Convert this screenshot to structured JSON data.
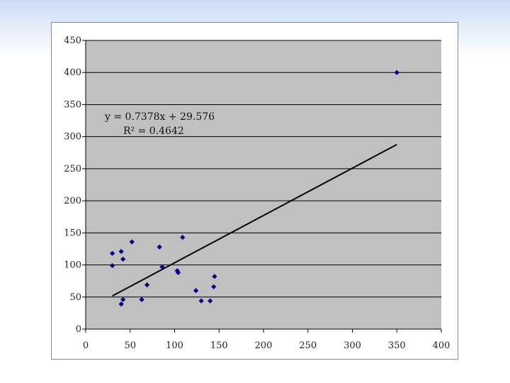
{
  "chart_data": {
    "type": "scatter",
    "title": "",
    "xlabel": "",
    "ylabel": "",
    "xlim": [
      0,
      400
    ],
    "ylim": [
      0,
      450
    ],
    "x_ticks": [
      0,
      50,
      100,
      150,
      200,
      250,
      300,
      350,
      400
    ],
    "y_ticks": [
      0,
      50,
      100,
      150,
      200,
      250,
      300,
      350,
      400,
      450
    ],
    "grid": "horizontal",
    "legend": "none",
    "plot_background": "#c0c0c0",
    "marker_color": "#000080",
    "series": [
      {
        "points": [
          [
            30,
            118
          ],
          [
            30,
            99
          ],
          [
            40,
            121
          ],
          [
            42,
            109
          ],
          [
            40,
            39
          ],
          [
            42,
            46
          ],
          [
            52,
            136
          ],
          [
            63,
            46
          ],
          [
            69,
            69
          ],
          [
            83,
            128
          ],
          [
            86,
            97
          ],
          [
            103,
            91
          ],
          [
            104,
            88
          ],
          [
            109,
            143
          ],
          [
            124,
            60
          ],
          [
            130,
            44
          ],
          [
            140,
            44
          ],
          [
            144,
            66
          ],
          [
            145,
            82
          ],
          [
            350,
            400
          ]
        ]
      }
    ],
    "trendline": {
      "slope": 0.7378,
      "intercept": 29.576,
      "x_range": [
        30,
        350
      ],
      "color": "#000000"
    },
    "annotations": {
      "equation": "y = 0.7378x + 29.576",
      "r_squared": "R² = 0.4642"
    }
  }
}
